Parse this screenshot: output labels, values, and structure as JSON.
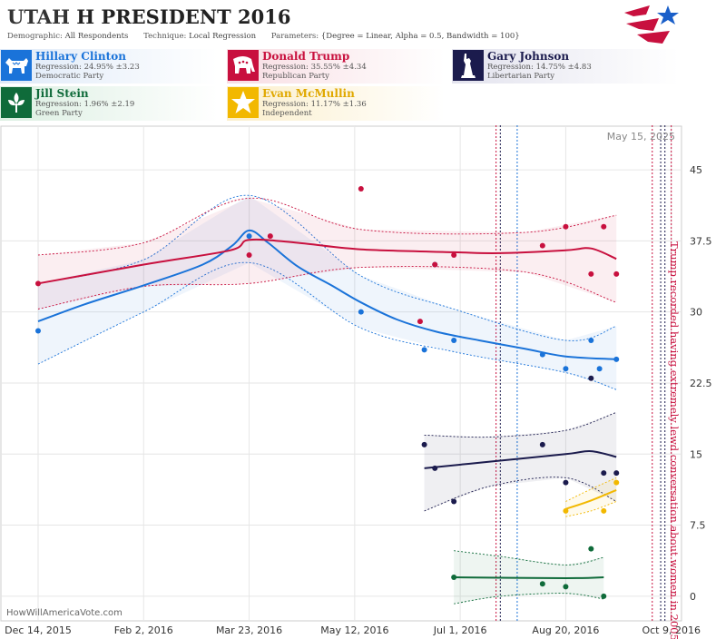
{
  "header": {
    "title_state": "UTAH",
    "title_rest": "H PRESIDENT 2016",
    "demographic_label": "Demographic:",
    "demographic_value": "All Respondents",
    "technique_label": "Technique:",
    "technique_value": "Local Regression",
    "parameters_label": "Parameters:",
    "parameters_value": "{Degree = Linear, Alpha = 0.5, Bandwidth = 100}"
  },
  "candidates": [
    {
      "name": "Hillary Clinton",
      "regression": "Regression: 24.95% ±3.23",
      "party": "Democratic Party",
      "color": "#1a73d9",
      "icon": "donkey-icon"
    },
    {
      "name": "Donald Trump",
      "regression": "Regression: 35.55% ±4.34",
      "party": "Republican Party",
      "color": "#c8103e",
      "icon": "elephant-icon"
    },
    {
      "name": "Gary Johnson",
      "regression": "Regression: 14.75% ±4.83",
      "party": "Libertarian Party",
      "color": "#1b1b4d",
      "icon": "statue-of-liberty-icon"
    },
    {
      "name": "Jill Stein",
      "regression": "Regression: 1.96% ±2.19",
      "party": "Green Party",
      "color": "#0f6b3a",
      "icon": "green-leaf-icon"
    },
    {
      "name": "Evan McMullin",
      "regression": "Regression: 11.17% ±1.36",
      "party": "Independent",
      "color": "#f2b800",
      "icon": "star-icon"
    }
  ],
  "chart_data": {
    "type": "line",
    "date_label": "May 15, 2025",
    "watermark": "HowWillAmericaVote.com",
    "x_ticks": [
      "Dec 14, 2015",
      "Feb 2, 2016",
      "Mar 23, 2016",
      "May 12, 2016",
      "Jul 1, 2016",
      "Aug 20, 2016",
      "Oct 9, 2016"
    ],
    "x_tick_values": [
      "2015-12-14",
      "2016-02-02",
      "2016-03-23",
      "2016-05-12",
      "2016-07-01",
      "2016-08-20",
      "2016-10-09"
    ],
    "y_ticks": [
      "0",
      "7.5",
      "15",
      "22.5",
      "30",
      "37.5",
      "45"
    ],
    "y_tick_values": [
      0,
      7.5,
      15,
      22.5,
      30,
      37.5,
      45
    ],
    "x_range": [
      "2015-12-14",
      "2016-10-13"
    ],
    "ylim": [
      -2.6,
      49.7
    ],
    "grid": true,
    "annotation": {
      "text": "Trump recorded having extremely lewd conversation about women in 2005",
      "date": "2016-10-07",
      "color": "#c8103e"
    },
    "event_lines": [
      {
        "date": "2016-07-18",
        "color": "#c8103e"
      },
      {
        "date": "2016-07-20",
        "color": "#1b1b4d"
      },
      {
        "date": "2016-07-28",
        "color": "#1a73d9"
      },
      {
        "date": "2016-09-30",
        "color": "#c8103e"
      },
      {
        "date": "2016-10-04",
        "color": "#1b1b4d"
      },
      {
        "date": "2016-10-06",
        "color": "#1b1b4d"
      },
      {
        "date": "2016-10-09",
        "color": "#c8103e"
      }
    ],
    "series": [
      {
        "name": "Hillary Clinton",
        "color": "#1a73d9",
        "points": [
          [
            "2015-12-14",
            28
          ],
          [
            "2016-03-23",
            38
          ],
          [
            "2016-05-15",
            30
          ],
          [
            "2016-06-14",
            26
          ],
          [
            "2016-06-19",
            35
          ],
          [
            "2016-06-28",
            27
          ],
          [
            "2016-08-09",
            25.5
          ],
          [
            "2016-08-20",
            24
          ],
          [
            "2016-09-01",
            27
          ],
          [
            "2016-09-05",
            24
          ],
          [
            "2016-09-13",
            25
          ]
        ],
        "fit": [
          [
            "2015-12-14",
            29
          ],
          [
            "2016-01-05",
            30.8
          ],
          [
            "2016-02-02",
            32.8
          ],
          [
            "2016-03-01",
            35
          ],
          [
            "2016-03-15",
            37
          ],
          [
            "2016-03-23",
            38.6
          ],
          [
            "2016-04-01",
            37.3
          ],
          [
            "2016-04-15",
            34.8
          ],
          [
            "2016-05-01",
            32.8
          ],
          [
            "2016-05-15",
            31
          ],
          [
            "2016-06-01",
            29.2
          ],
          [
            "2016-06-20",
            27.9
          ],
          [
            "2016-07-10",
            27
          ],
          [
            "2016-08-01",
            26.1
          ],
          [
            "2016-08-20",
            25.3
          ],
          [
            "2016-09-13",
            25
          ]
        ],
        "upper": [
          [
            "2015-12-14",
            33
          ],
          [
            "2016-02-02",
            35.5
          ],
          [
            "2016-03-23",
            42.3
          ],
          [
            "2016-05-15",
            33.8
          ],
          [
            "2016-06-28",
            30.3
          ],
          [
            "2016-08-20",
            27
          ],
          [
            "2016-09-13",
            28.5
          ]
        ],
        "lower": [
          [
            "2015-12-14",
            24.5
          ],
          [
            "2016-02-02",
            30
          ],
          [
            "2016-03-23",
            35.2
          ],
          [
            "2016-05-15",
            28.3
          ],
          [
            "2016-06-28",
            25.8
          ],
          [
            "2016-08-20",
            23.6
          ],
          [
            "2016-09-13",
            21.8
          ]
        ]
      },
      {
        "name": "Donald Trump",
        "color": "#c8103e",
        "points": [
          [
            "2015-12-14",
            33
          ],
          [
            "2016-03-23",
            36
          ],
          [
            "2016-04-02",
            38
          ],
          [
            "2016-05-15",
            43
          ],
          [
            "2016-06-12",
            29
          ],
          [
            "2016-06-19",
            35
          ],
          [
            "2016-06-28",
            36
          ],
          [
            "2016-08-09",
            37
          ],
          [
            "2016-08-20",
            39
          ],
          [
            "2016-09-01",
            34
          ],
          [
            "2016-09-07",
            39
          ],
          [
            "2016-09-13",
            34
          ]
        ],
        "fit": [
          [
            "2015-12-14",
            33
          ],
          [
            "2016-02-02",
            35
          ],
          [
            "2016-03-14",
            36.5
          ],
          [
            "2016-03-23",
            37.6
          ],
          [
            "2016-04-15",
            37.3
          ],
          [
            "2016-05-15",
            36.6
          ],
          [
            "2016-06-28",
            36.3
          ],
          [
            "2016-07-20",
            36.2
          ],
          [
            "2016-08-20",
            36.5
          ],
          [
            "2016-09-01",
            36.7
          ],
          [
            "2016-09-13",
            35.6
          ]
        ],
        "upper": [
          [
            "2015-12-14",
            36
          ],
          [
            "2016-02-02",
            37.3
          ],
          [
            "2016-03-23",
            42
          ],
          [
            "2016-05-15",
            38.7
          ],
          [
            "2016-08-01",
            38.4
          ],
          [
            "2016-09-13",
            40.2
          ]
        ],
        "lower": [
          [
            "2015-12-14",
            30.3
          ],
          [
            "2016-02-02",
            32.7
          ],
          [
            "2016-03-23",
            33
          ],
          [
            "2016-05-15",
            34.7
          ],
          [
            "2016-08-01",
            34.2
          ],
          [
            "2016-09-13",
            31
          ]
        ]
      },
      {
        "name": "Gary Johnson",
        "color": "#1b1b4d",
        "points": [
          [
            "2016-06-14",
            16
          ],
          [
            "2016-06-19",
            13.5
          ],
          [
            "2016-06-28",
            10
          ],
          [
            "2016-08-09",
            16
          ],
          [
            "2016-08-20",
            12
          ],
          [
            "2016-09-01",
            23
          ],
          [
            "2016-09-07",
            13
          ],
          [
            "2016-09-13",
            13
          ]
        ],
        "fit": [
          [
            "2016-06-14",
            13.5
          ],
          [
            "2016-07-15",
            14.2
          ],
          [
            "2016-08-20",
            15
          ],
          [
            "2016-09-01",
            15.3
          ],
          [
            "2016-09-13",
            14.7
          ]
        ],
        "upper": [
          [
            "2016-06-14",
            17
          ],
          [
            "2016-07-15",
            16.8
          ],
          [
            "2016-08-20",
            17.5
          ],
          [
            "2016-09-13",
            19.4
          ]
        ],
        "lower": [
          [
            "2016-06-14",
            9
          ],
          [
            "2016-07-15",
            11.6
          ],
          [
            "2016-08-20",
            12.5
          ],
          [
            "2016-09-13",
            10
          ]
        ]
      },
      {
        "name": "Jill Stein",
        "color": "#0f6b3a",
        "points": [
          [
            "2016-06-28",
            2
          ],
          [
            "2016-08-09",
            1.3
          ],
          [
            "2016-08-20",
            1
          ],
          [
            "2016-09-01",
            5
          ],
          [
            "2016-09-07",
            0
          ]
        ],
        "fit": [
          [
            "2016-06-28",
            2
          ],
          [
            "2016-08-20",
            1.9
          ],
          [
            "2016-09-07",
            2
          ]
        ],
        "upper": [
          [
            "2016-06-28",
            4.8
          ],
          [
            "2016-07-20",
            4.2
          ],
          [
            "2016-08-20",
            3.3
          ],
          [
            "2016-09-07",
            4.1
          ]
        ],
        "lower": [
          [
            "2016-06-28",
            -0.8
          ],
          [
            "2016-07-20",
            0
          ],
          [
            "2016-08-20",
            0.3
          ],
          [
            "2016-09-07",
            -0.3
          ]
        ]
      },
      {
        "name": "Evan McMullin",
        "color": "#f2b800",
        "points": [
          [
            "2016-08-20",
            9
          ],
          [
            "2016-09-07",
            9
          ],
          [
            "2016-09-13",
            12
          ]
        ],
        "fit": [
          [
            "2016-08-20",
            9.2
          ],
          [
            "2016-09-01",
            10.1
          ],
          [
            "2016-09-13",
            11.2
          ]
        ],
        "upper": [
          [
            "2016-08-20",
            10
          ],
          [
            "2016-09-01",
            11.3
          ],
          [
            "2016-09-13",
            12.5
          ]
        ],
        "lower": [
          [
            "2016-08-20",
            8.4
          ],
          [
            "2016-09-01",
            9
          ],
          [
            "2016-09-13",
            10
          ]
        ]
      }
    ]
  }
}
